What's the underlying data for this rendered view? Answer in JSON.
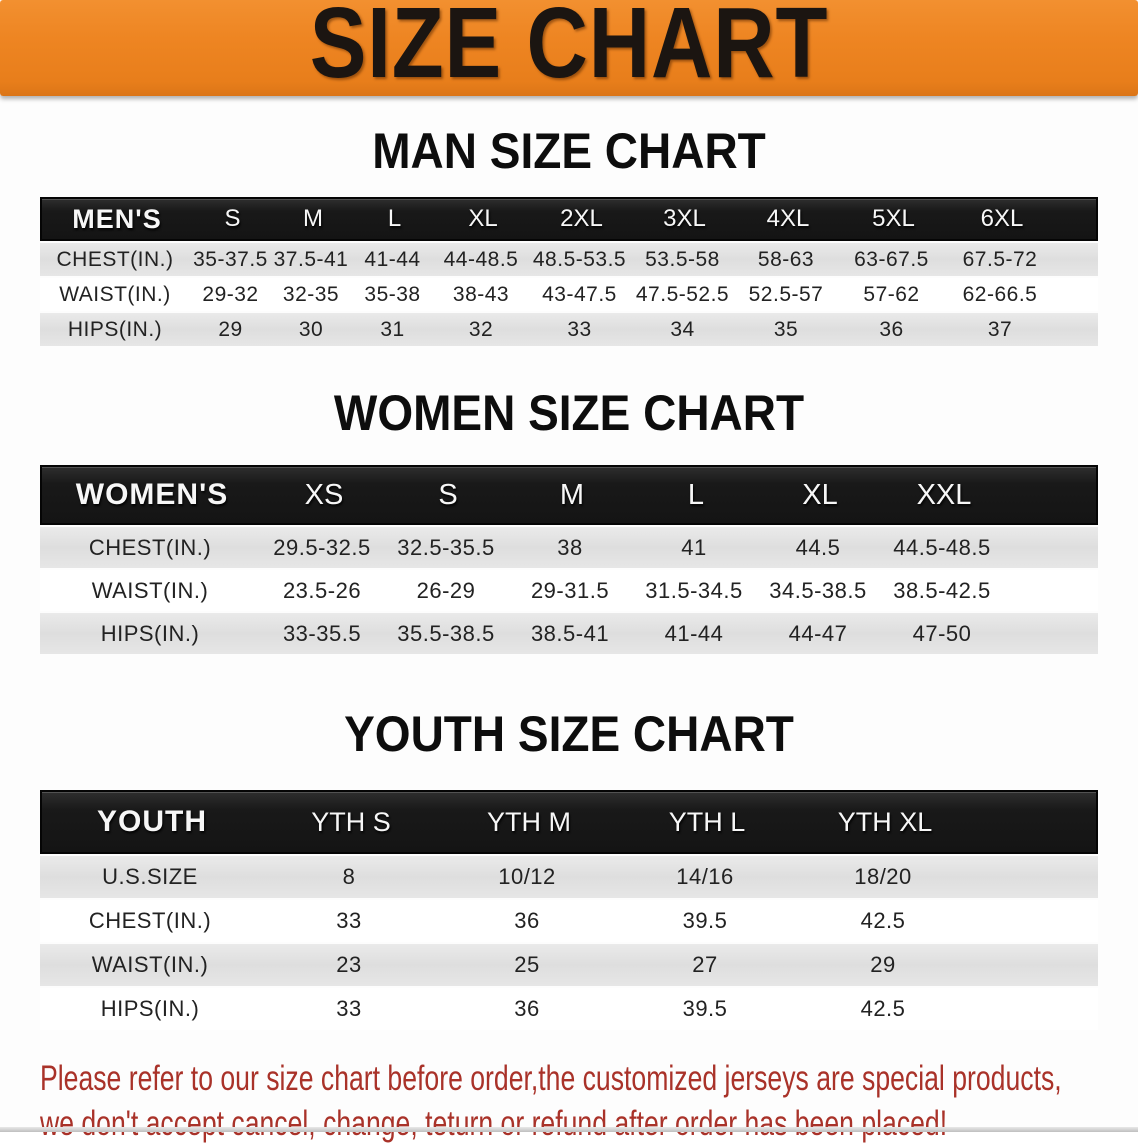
{
  "banner": {
    "title": "SIZE CHART",
    "bg_color": "#ee8522",
    "text_color": "#1b1511"
  },
  "colors": {
    "table_header_bg": "#1a1a1a",
    "table_header_text": "#f7f7f7",
    "row_shaded_bg": "#e1e1e1",
    "row_text": "#222222",
    "disclaimer_text": "#a93229"
  },
  "sections": [
    {
      "heading": "MAN SIZE CHART",
      "header_label": "MEN'S",
      "columns": [
        "S",
        "M",
        "L",
        "XL",
        "2XL",
        "3XL",
        "4XL",
        "5XL",
        "6XL"
      ],
      "rows": [
        {
          "label": "CHEST(IN.)",
          "values": [
            "35-37.5",
            "37.5-41",
            "41-44",
            "44-48.5",
            "48.5-53.5",
            "53.5-58",
            "58-63",
            "63-67.5",
            "67.5-72"
          ]
        },
        {
          "label": "WAIST(IN.)",
          "values": [
            "29-32",
            "32-35",
            "35-38",
            "38-43",
            "43-47.5",
            "47.5-52.5",
            "52.5-57",
            "57-62",
            "62-66.5"
          ]
        },
        {
          "label": "HIPS(IN.)",
          "values": [
            "29",
            "30",
            "31",
            "32",
            "33",
            "34",
            "35",
            "36",
            "37"
          ]
        }
      ]
    },
    {
      "heading": "WOMEN SIZE CHART",
      "header_label": "WOMEN'S",
      "columns": [
        "XS",
        "S",
        "M",
        "L",
        "XL",
        "XXL"
      ],
      "rows": [
        {
          "label": "CHEST(IN.)",
          "values": [
            "29.5-32.5",
            "32.5-35.5",
            "38",
            "41",
            "44.5",
            "44.5-48.5"
          ]
        },
        {
          "label": "WAIST(IN.)",
          "values": [
            "23.5-26",
            "26-29",
            "29-31.5",
            "31.5-34.5",
            "34.5-38.5",
            "38.5-42.5"
          ]
        },
        {
          "label": "HIPS(IN.)",
          "values": [
            "33-35.5",
            "35.5-38.5",
            "38.5-41",
            "41-44",
            "44-47",
            "47-50"
          ]
        }
      ]
    },
    {
      "heading": "YOUTH SIZE CHART",
      "header_label": "YOUTH",
      "columns": [
        "YTH S",
        "YTH M",
        "YTH L",
        "YTH XL"
      ],
      "rows": [
        {
          "label": "U.S.SIZE",
          "values": [
            "8",
            "10/12",
            "14/16",
            "18/20"
          ]
        },
        {
          "label": "CHEST(IN.)",
          "values": [
            "33",
            "36",
            "39.5",
            "42.5"
          ]
        },
        {
          "label": "WAIST(IN.)",
          "values": [
            "23",
            "25",
            "27",
            "29"
          ]
        },
        {
          "label": "HIPS(IN.)",
          "values": [
            "33",
            "36",
            "39.5",
            "42.5"
          ]
        }
      ]
    }
  ],
  "disclaimer": {
    "line1": "Please refer to our size chart before order,the customized jerseys are special products,",
    "line2": "we don't accept cancel, change, teturn or refund after order has been placed!"
  }
}
